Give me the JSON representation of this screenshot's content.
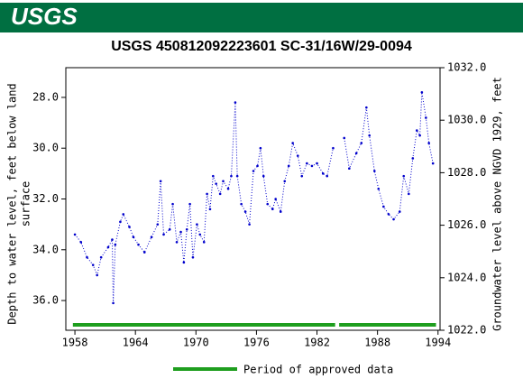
{
  "chart_data": {
    "type": "line",
    "logo_text": "USGS",
    "title": "USGS 450812092223601 SC-31/16W/29-0094",
    "ylabel": [
      "Depth to water level, feet below land",
      "surface"
    ],
    "y2label": "Groundwater level above NGVD 1929, feet",
    "x": [
      1958.0,
      1958.6,
      1959.2,
      1959.8,
      1960.2,
      1960.6,
      1961.3,
      1961.7,
      1961.8,
      1962.0,
      1962.5,
      1962.8,
      1963.4,
      1963.8,
      1964.3,
      1964.9,
      1965.6,
      1966.2,
      1966.5,
      1966.8,
      1967.4,
      1967.7,
      1968.1,
      1968.5,
      1968.8,
      1969.1,
      1969.4,
      1969.7,
      1970.1,
      1970.4,
      1970.8,
      1971.1,
      1971.4,
      1971.7,
      1972.0,
      1972.4,
      1972.7,
      1973.2,
      1973.5,
      1973.9,
      1974.1,
      1974.5,
      1974.9,
      1975.3,
      1975.7,
      1976.1,
      1976.4,
      1976.7,
      1977.1,
      1977.6,
      1977.9,
      1978.4,
      1978.8,
      1979.2,
      1979.6,
      1980.1,
      1980.5,
      1981.0,
      1981.5,
      1982.0,
      1982.6,
      1983.0,
      1983.6,
      1984.1,
      1984.7,
      1985.2,
      1985.9,
      1986.4,
      1986.9,
      1987.2,
      1987.7,
      1988.1,
      1988.6,
      1989.1,
      1989.6,
      1990.2,
      1990.6,
      1991.1,
      1991.5,
      1991.9,
      1992.2,
      1992.4,
      1992.8,
      1993.1,
      1993.5
    ],
    "series": [
      {
        "name": "Depth to water level",
        "color": "#0000cc",
        "values": [
          33.4,
          33.7,
          34.3,
          34.6,
          35.0,
          34.3,
          33.9,
          33.6,
          36.1,
          33.8,
          32.9,
          32.6,
          33.1,
          33.5,
          33.8,
          34.1,
          33.5,
          33.0,
          31.3,
          33.4,
          33.2,
          32.2,
          33.7,
          33.3,
          34.5,
          33.2,
          32.2,
          34.3,
          33.0,
          33.4,
          33.7,
          31.8,
          32.4,
          31.1,
          31.4,
          31.8,
          31.3,
          31.6,
          31.1,
          28.2,
          31.1,
          32.2,
          32.5,
          33.0,
          30.9,
          30.7,
          30.0,
          31.1,
          32.2,
          32.4,
          32.0,
          32.5,
          31.3,
          30.7,
          29.8,
          30.3,
          31.1,
          30.6,
          30.7,
          30.6,
          31.0,
          31.1,
          30.0,
          null,
          29.6,
          30.8,
          30.2,
          29.8,
          28.4,
          29.5,
          30.9,
          31.6,
          32.3,
          32.6,
          32.8,
          32.5,
          31.1,
          31.8,
          30.4,
          29.3,
          29.5,
          27.8,
          28.8,
          29.8,
          30.6
        ]
      }
    ],
    "xlim": [
      1957.1,
      1994.2
    ],
    "xticks": [
      1958,
      1964,
      1970,
      1976,
      1982,
      1988,
      1994
    ],
    "ylim": [
      37.17,
      26.83
    ],
    "yticks": [
      {
        "value": 28,
        "label": "28.0"
      },
      {
        "value": 30,
        "label": "30.0"
      },
      {
        "value": 32,
        "label": "32.0"
      },
      {
        "value": 34,
        "label": "34.0"
      },
      {
        "value": 36,
        "label": "36.0"
      }
    ],
    "y2lim": [
      1022,
      1032
    ],
    "y2ticks": [
      {
        "value": 1022,
        "label": "1022.0"
      },
      {
        "value": 1024,
        "label": "1024.0"
      },
      {
        "value": 1026,
        "label": "1026.0"
      },
      {
        "value": 1028,
        "label": "1028.0"
      },
      {
        "value": 1030,
        "label": "1030.0"
      },
      {
        "value": 1032,
        "label": "1032.0"
      }
    ],
    "approved_periods": [
      [
        1957.8,
        1983.8
      ],
      [
        1984.2,
        1993.8
      ]
    ],
    "approved_color": "#1e9e1e",
    "legend": "Period of approved data"
  }
}
